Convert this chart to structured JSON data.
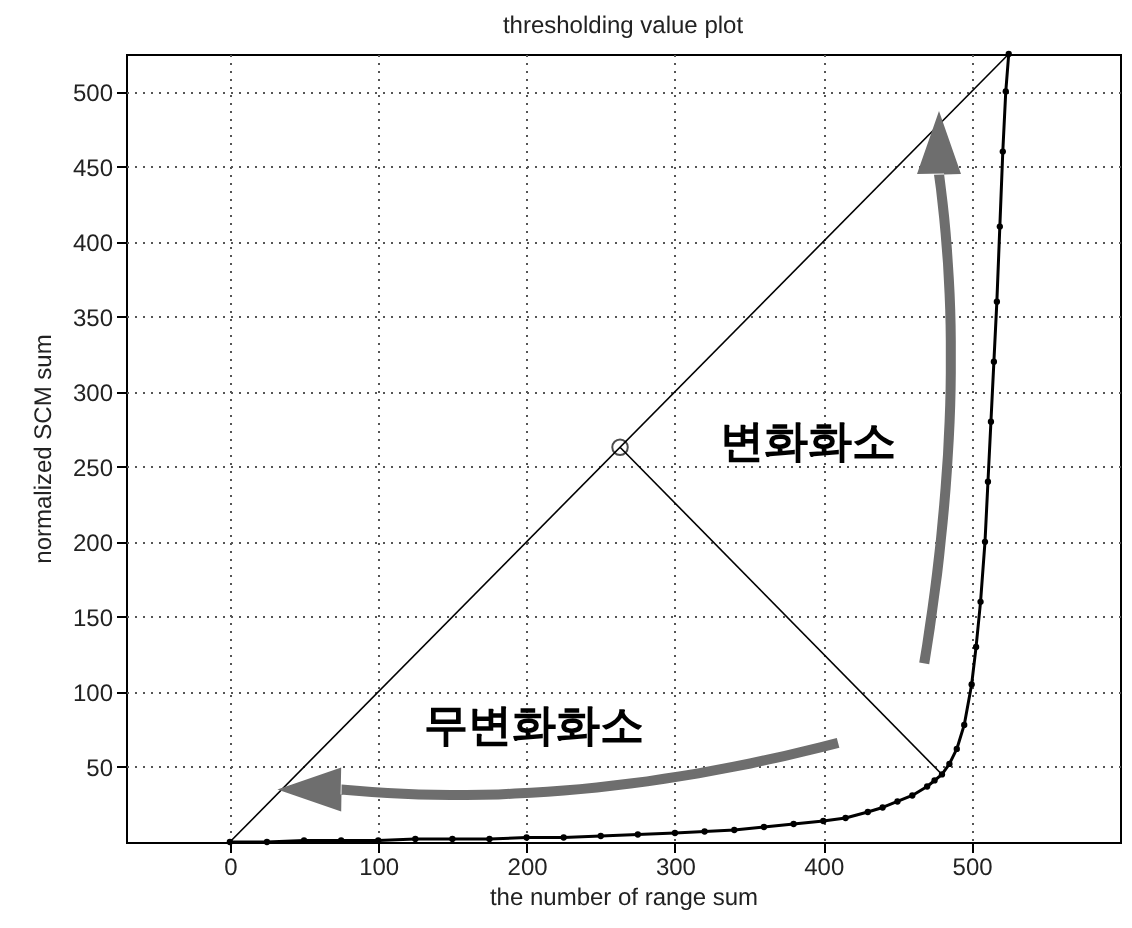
{
  "chart_data": {
    "type": "line",
    "title": "thresholding value plot",
    "xlabel": "the number of range sum",
    "ylabel": "normalized SCM sum",
    "xlim": [
      -70,
      600
    ],
    "xticks": [
      0,
      100,
      200,
      300,
      400,
      500
    ],
    "ylim": [
      0,
      525
    ],
    "yticks": [
      50,
      100,
      150,
      200,
      250,
      300,
      350,
      400,
      450,
      500
    ],
    "grid": true,
    "series": [
      {
        "color": "#000000",
        "marker": "circle",
        "x": [
          0,
          25,
          50,
          75,
          100,
          125,
          150,
          175,
          200,
          225,
          250,
          275,
          300,
          320,
          340,
          360,
          380,
          400,
          415,
          430,
          440,
          450,
          460,
          470,
          475,
          480,
          485,
          490,
          495,
          500,
          503,
          506,
          509,
          511,
          513,
          515,
          517,
          519,
          521,
          523,
          525
        ],
        "values": [
          0,
          0,
          1,
          1,
          1,
          2,
          2,
          2,
          3,
          3,
          4,
          5,
          6,
          7,
          8,
          10,
          12,
          14,
          16,
          20,
          23,
          27,
          31,
          37,
          41,
          45,
          52,
          62,
          78,
          105,
          130,
          160,
          200,
          240,
          280,
          320,
          360,
          410,
          460,
          500,
          525
        ]
      },
      {
        "color": "#000000",
        "marker": "none",
        "x": [
          0,
          525
        ],
        "values": [
          0,
          525
        ]
      },
      {
        "color": "#000000",
        "marker": "none",
        "x": [
          263,
          480
        ],
        "values": [
          263,
          45
        ]
      },
      {
        "type": "scatter",
        "color": "#000000",
        "marker": "circle",
        "x": [
          263
        ],
        "values": [
          263
        ]
      }
    ],
    "annotations": [
      "변화화소",
      "무변화화소"
    ]
  }
}
